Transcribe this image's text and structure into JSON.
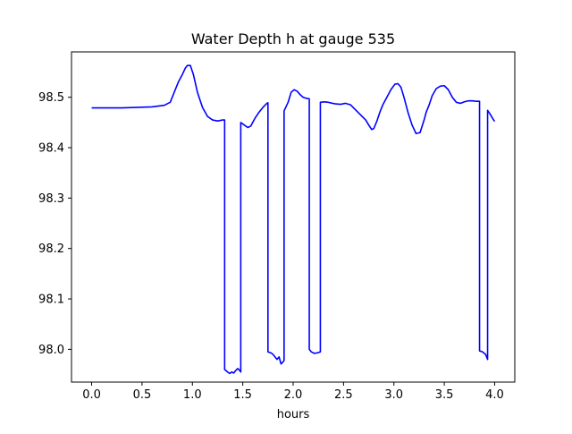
{
  "chart_data": {
    "type": "line",
    "title": "Water Depth h at gauge 535",
    "xlabel": "hours",
    "ylabel": "",
    "xlim": [
      -0.2,
      4.2
    ],
    "ylim": [
      97.935,
      98.59
    ],
    "xticks": [
      0.0,
      0.5,
      1.0,
      1.5,
      2.0,
      2.5,
      3.0,
      3.5,
      4.0
    ],
    "xtick_labels": [
      "0.0",
      "0.5",
      "1.0",
      "1.5",
      "2.0",
      "2.5",
      "3.0",
      "3.5",
      "4.0"
    ],
    "yticks": [
      98.0,
      98.1,
      98.2,
      98.3,
      98.4,
      98.5
    ],
    "ytick_labels": [
      "98.0",
      "98.1",
      "98.2",
      "98.3",
      "98.4",
      "98.5"
    ],
    "grid": false,
    "legend": "none",
    "series": [
      {
        "color": "#0000ff",
        "x": [
          0.0,
          0.3,
          0.6,
          0.72,
          0.78,
          0.82,
          0.86,
          0.9,
          0.93,
          0.95,
          0.98,
          1.01,
          1.05,
          1.1,
          1.15,
          1.2,
          1.25,
          1.3,
          1.32,
          1.32,
          1.35,
          1.37,
          1.39,
          1.41,
          1.43,
          1.45,
          1.47,
          1.48,
          1.48,
          1.5,
          1.55,
          1.58,
          1.62,
          1.66,
          1.7,
          1.74,
          1.75,
          1.75,
          1.78,
          1.8,
          1.82,
          1.84,
          1.86,
          1.88,
          1.9,
          1.91,
          1.91,
          1.95,
          1.98,
          2.01,
          2.04,
          2.07,
          2.1,
          2.13,
          2.16,
          2.16,
          2.18,
          2.21,
          2.24,
          2.27,
          2.27,
          2.31,
          2.35,
          2.39,
          2.42,
          2.47,
          2.52,
          2.57,
          2.62,
          2.67,
          2.72,
          2.75,
          2.78,
          2.8,
          2.83,
          2.86,
          2.89,
          2.93,
          2.97,
          3.01,
          3.04,
          3.07,
          3.1,
          3.14,
          3.18,
          3.22,
          3.26,
          3.3,
          3.32,
          3.35,
          3.38,
          3.42,
          3.46,
          3.5,
          3.54,
          3.58,
          3.62,
          3.66,
          3.7,
          3.74,
          3.78,
          3.82,
          3.85,
          3.85,
          3.88,
          3.91,
          3.93,
          3.93,
          3.96,
          3.98,
          4.0
        ],
        "y": [
          98.479,
          98.479,
          98.481,
          98.484,
          98.49,
          98.51,
          98.53,
          98.545,
          98.558,
          98.563,
          98.563,
          98.545,
          98.51,
          98.48,
          98.462,
          98.455,
          98.453,
          98.455,
          98.455,
          97.96,
          97.955,
          97.952,
          97.955,
          97.953,
          97.958,
          97.962,
          97.958,
          97.955,
          98.45,
          98.447,
          98.44,
          98.443,
          98.458,
          98.47,
          98.48,
          98.488,
          98.489,
          97.995,
          97.993,
          97.99,
          97.985,
          97.98,
          97.985,
          97.971,
          97.975,
          97.978,
          98.473,
          98.49,
          98.51,
          98.515,
          98.512,
          98.505,
          98.5,
          98.498,
          98.497,
          98.0,
          97.995,
          97.992,
          97.993,
          97.995,
          98.49,
          98.491,
          98.49,
          98.488,
          98.487,
          98.486,
          98.488,
          98.485,
          98.475,
          98.465,
          98.455,
          98.445,
          98.436,
          98.438,
          98.452,
          98.47,
          98.485,
          98.5,
          98.515,
          98.526,
          98.527,
          98.52,
          98.5,
          98.47,
          98.445,
          98.428,
          98.43,
          98.455,
          98.47,
          98.485,
          98.503,
          98.517,
          98.522,
          98.523,
          98.515,
          98.5,
          98.49,
          98.488,
          98.491,
          98.493,
          98.493,
          98.492,
          98.492,
          97.997,
          97.995,
          97.99,
          97.98,
          98.474,
          98.465,
          98.458,
          98.452
        ]
      }
    ]
  }
}
